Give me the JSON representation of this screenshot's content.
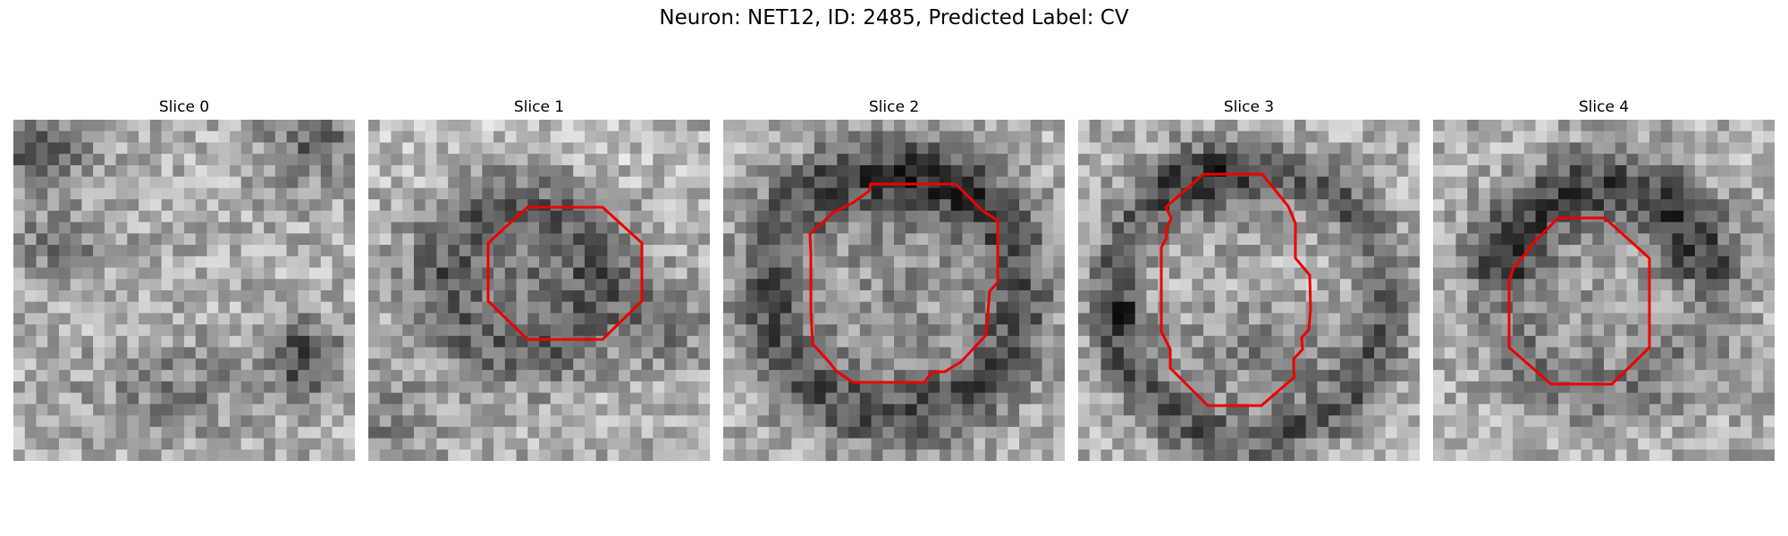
{
  "figure": {
    "title": "Neuron: NET12, ID: 2485, Predicted Label: CV"
  },
  "panels": [
    {
      "title": "Slice 0",
      "has_contour": false
    },
    {
      "title": "Slice 1",
      "has_contour": true
    },
    {
      "title": "Slice 2",
      "has_contour": true
    },
    {
      "title": "Slice 3",
      "has_contour": true
    },
    {
      "title": "Slice 4",
      "has_contour": true
    }
  ],
  "colors": {
    "contour": "#ee0000",
    "colormap": "gray"
  }
}
